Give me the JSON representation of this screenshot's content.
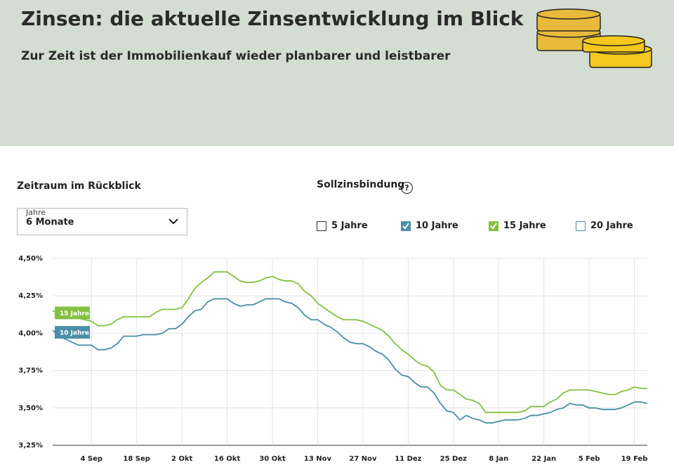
{
  "header": {
    "title": "Zinsen: die aktuelle Zinsentwicklung im Blick",
    "subtitle": "Zur Zeit ist der Immobilienkauf wieder planbarer und leistbarer"
  },
  "controls": {
    "period": {
      "heading": "Zeitraum im Rückblick",
      "select_label": "Jahre",
      "select_value": "6 Monate"
    },
    "binding": {
      "heading": "Sollzinsbindung",
      "help": "?",
      "options": [
        {
          "label": "5 Jahre",
          "checked": false,
          "color": "#333333"
        },
        {
          "label": "10 Jahre",
          "checked": true,
          "color": "#4a8fa6"
        },
        {
          "label": "15 Jahre",
          "checked": true,
          "color": "#84c141"
        },
        {
          "label": "20 Jahre",
          "checked": false,
          "color": "#4a8fa6"
        }
      ]
    }
  },
  "chart_data": {
    "type": "line",
    "categories": [
      null,
      null,
      null,
      null,
      null,
      null,
      "4 Sep",
      null,
      null,
      null,
      null,
      null,
      null,
      "18 Sep",
      null,
      null,
      null,
      null,
      null,
      null,
      "2 Okt",
      null,
      null,
      null,
      null,
      null,
      null,
      "16 Okt",
      null,
      null,
      null,
      null,
      null,
      null,
      "30 Okt",
      null,
      null,
      null,
      null,
      null,
      null,
      "13 Nov",
      null,
      null,
      null,
      null,
      null,
      null,
      "27 Nov",
      null,
      null,
      null,
      null,
      null,
      null,
      "11 Dez",
      null,
      null,
      null,
      null,
      null,
      null,
      "25 Dez",
      null,
      null,
      null,
      null,
      null,
      null,
      "8 Jan",
      null,
      null,
      null,
      null,
      null,
      null,
      "22 Jan",
      null,
      null,
      null,
      null,
      null,
      null,
      "5 Feb",
      null,
      null,
      null,
      null,
      null,
      null,
      "19 Feb",
      null,
      null
    ],
    "series": [
      {
        "name": "15 Jahre",
        "color": "#84c141",
        "values": [
          4.15,
          4.13,
          4.12,
          4.11,
          4.1,
          4.09,
          4.08,
          4.05,
          4.05,
          4.06,
          4.09,
          4.11,
          4.11,
          4.11,
          4.11,
          4.11,
          4.14,
          4.16,
          4.16,
          4.16,
          4.17,
          4.23,
          4.3,
          4.34,
          4.37,
          4.41,
          4.41,
          4.41,
          4.38,
          4.35,
          4.34,
          4.34,
          4.35,
          4.37,
          4.38,
          4.36,
          4.35,
          4.35,
          4.33,
          4.28,
          4.25,
          4.2,
          4.17,
          4.14,
          4.11,
          4.09,
          4.09,
          4.09,
          4.08,
          4.06,
          4.04,
          4.02,
          3.98,
          3.93,
          3.89,
          3.86,
          3.82,
          3.79,
          3.78,
          3.74,
          3.65,
          3.62,
          3.62,
          3.59,
          3.56,
          3.55,
          3.53,
          3.47,
          3.47,
          3.47,
          3.47,
          3.47,
          3.47,
          3.48,
          3.51,
          3.51,
          3.51,
          3.54,
          3.56,
          3.6,
          3.62,
          3.62,
          3.62,
          3.62,
          3.61,
          3.6,
          3.59,
          3.59,
          3.61,
          3.62,
          3.64,
          3.63,
          3.63
        ]
      },
      {
        "name": "10 Jahre",
        "color": "#4a8fa6",
        "values": [
          4.02,
          3.98,
          3.96,
          3.94,
          3.92,
          3.92,
          3.92,
          3.89,
          3.89,
          3.9,
          3.93,
          3.98,
          3.98,
          3.98,
          3.99,
          3.99,
          3.99,
          4.0,
          4.03,
          4.03,
          4.06,
          4.11,
          4.15,
          4.16,
          4.21,
          4.23,
          4.23,
          4.23,
          4.2,
          4.18,
          4.19,
          4.19,
          4.21,
          4.23,
          4.23,
          4.23,
          4.21,
          4.2,
          4.17,
          4.12,
          4.09,
          4.09,
          4.06,
          4.04,
          4.01,
          3.97,
          3.94,
          3.93,
          3.93,
          3.91,
          3.88,
          3.86,
          3.82,
          3.76,
          3.72,
          3.71,
          3.67,
          3.64,
          3.64,
          3.6,
          3.53,
          3.48,
          3.47,
          3.42,
          3.45,
          3.43,
          3.42,
          3.4,
          3.4,
          3.41,
          3.42,
          3.42,
          3.42,
          3.43,
          3.45,
          3.45,
          3.46,
          3.47,
          3.49,
          3.5,
          3.53,
          3.52,
          3.52,
          3.5,
          3.5,
          3.49,
          3.49,
          3.49,
          3.5,
          3.52,
          3.54,
          3.54,
          3.53
        ]
      }
    ],
    "ylim": [
      3.25,
      4.5
    ],
    "yticks": [
      {
        "value": 3.25,
        "label": "3,25%"
      },
      {
        "value": 3.5,
        "label": "3,50%"
      },
      {
        "value": 3.75,
        "label": "3,75%"
      },
      {
        "value": 4.0,
        "label": "4,00%"
      },
      {
        "value": 4.25,
        "label": "4,25%"
      },
      {
        "value": 4.5,
        "label": "4,50%"
      }
    ],
    "grid": true
  }
}
